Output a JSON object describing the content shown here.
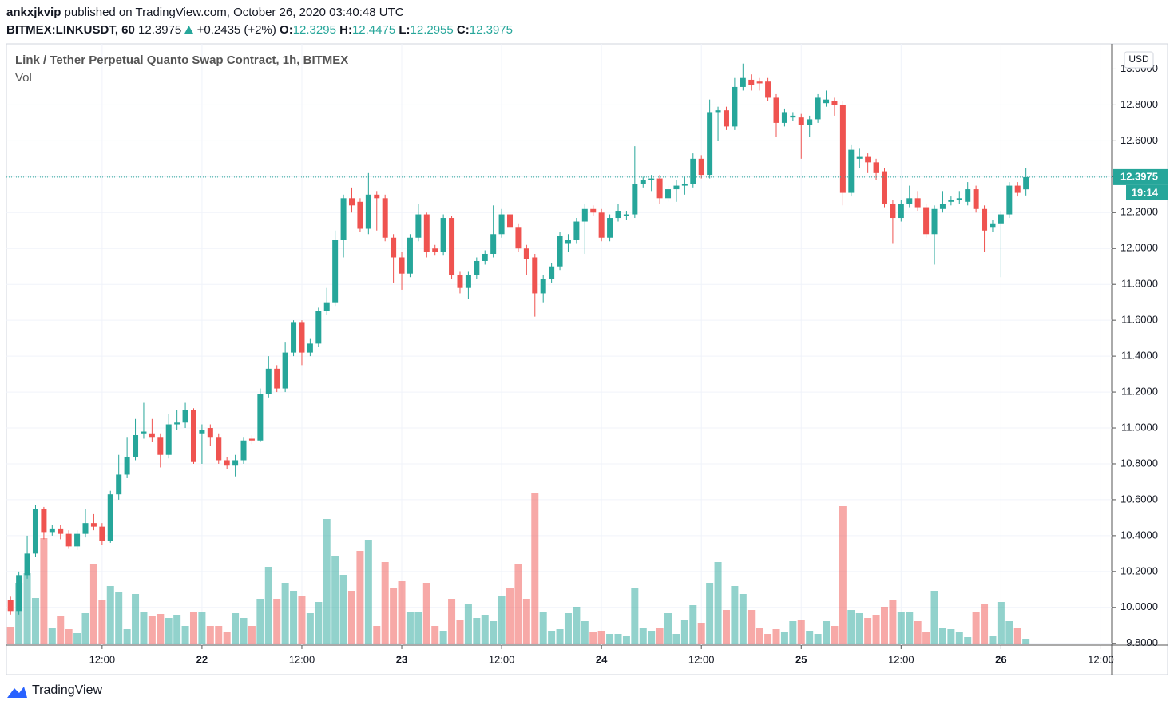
{
  "header": {
    "author": "ankxjkvip",
    "published": "published on TradingView.com, October 26, 2020 03:40:48 UTC",
    "symbol": "BITMEX:LINKUSDT, 60",
    "change": "+0.2435 (+2%)",
    "o": "O:",
    "h": "H:",
    "l": "L:",
    "c": "C:"
  },
  "chart_data": {
    "type": "candlestick",
    "title": "Link / Tether Perpetual Quanto Swap Contract, 1h, BITMEX",
    "volume_label": "Vol",
    "currency": "USD",
    "countdown": "19:14",
    "open": [
      10.04,
      9.98,
      10.18,
      10.3,
      10.55,
      10.42,
      10.44,
      10.41,
      10.34,
      10.41,
      10.47,
      10.45,
      10.37,
      10.63,
      10.74,
      10.84,
      10.97,
      10.97,
      10.95,
      10.85,
      11.02,
      11.03,
      11.1,
      10.97,
      11.0,
      10.95,
      10.82,
      10.79,
      10.82,
      10.94,
      10.93,
      11.19,
      11.33,
      11.22,
      11.42,
      11.59,
      11.42,
      11.47,
      11.65,
      11.7,
      12.05,
      12.28,
      12.26,
      12.11,
      12.3,
      12.28,
      12.06,
      11.95,
      11.86,
      12.06,
      12.19,
      12.0,
      11.98,
      12.17,
      11.85,
      11.78,
      11.85,
      11.93,
      11.97,
      12.08,
      12.19,
      12.12,
      12.0,
      11.95,
      11.75,
      11.83,
      11.9,
      12.03,
      12.05,
      12.15,
      12.22,
      12.2,
      12.06,
      12.17,
      12.18,
      12.19,
      12.36,
      12.38,
      12.39,
      12.28,
      12.33,
      12.35,
      12.36,
      12.5,
      12.41,
      12.76,
      12.77,
      12.68,
      12.9,
      12.94,
      12.93,
      12.93,
      12.84,
      12.7,
      12.73,
      12.73,
      12.69,
      12.72,
      12.81,
      12.82,
      12.8,
      12.31,
      12.5,
      12.51,
      12.48,
      12.43,
      12.25,
      12.17,
      12.25,
      12.28,
      12.23,
      12.08,
      12.22,
      12.26,
      12.27,
      12.26,
      12.33,
      12.22,
      12.12,
      12.14,
      12.19,
      12.35,
      12.3295
    ],
    "high": [
      10.06,
      10.2,
      10.4,
      10.57,
      10.56,
      10.46,
      10.46,
      10.43,
      10.43,
      10.55,
      10.52,
      10.47,
      10.65,
      10.85,
      10.95,
      11.05,
      11.14,
      11.05,
      10.97,
      11.08,
      11.1,
      11.14,
      11.11,
      11.02,
      11.02,
      10.97,
      10.84,
      10.85,
      10.95,
      10.96,
      11.22,
      11.4,
      11.35,
      11.48,
      11.6,
      11.6,
      11.5,
      11.67,
      11.78,
      12.1,
      12.3,
      12.34,
      12.28,
      12.42,
      12.32,
      12.3,
      12.08,
      11.98,
      12.08,
      12.25,
      12.2,
      12.02,
      12.19,
      12.18,
      11.87,
      11.87,
      11.95,
      11.99,
      12.24,
      12.22,
      12.27,
      12.14,
      12.02,
      11.97,
      11.85,
      11.92,
      12.09,
      12.08,
      12.17,
      12.25,
      12.24,
      12.22,
      12.19,
      12.25,
      12.21,
      12.57,
      12.4,
      12.41,
      12.41,
      12.35,
      12.38,
      12.4,
      12.53,
      12.52,
      12.83,
      12.79,
      12.79,
      12.95,
      13.03,
      12.97,
      12.95,
      12.95,
      12.86,
      12.78,
      12.76,
      12.75,
      12.74,
      12.86,
      12.88,
      12.84,
      12.82,
      12.58,
      12.56,
      12.53,
      12.5,
      12.45,
      12.27,
      12.27,
      12.35,
      12.32,
      12.25,
      12.24,
      12.32,
      12.29,
      12.32,
      12.37,
      12.35,
      12.24,
      12.16,
      12.21,
      12.37,
      12.37,
      12.4475
    ],
    "low": [
      9.96,
      9.96,
      10.16,
      10.28,
      10.38,
      10.4,
      10.38,
      10.33,
      10.32,
      10.39,
      10.43,
      10.35,
      10.36,
      10.6,
      10.72,
      10.82,
      10.94,
      10.92,
      10.78,
      10.83,
      10.99,
      11.0,
      10.8,
      10.8,
      10.9,
      10.8,
      10.77,
      10.73,
      10.8,
      10.91,
      10.92,
      11.17,
      11.2,
      11.2,
      11.4,
      11.35,
      11.4,
      11.45,
      11.63,
      11.68,
      11.95,
      12.2,
      12.09,
      12.08,
      12.1,
      12.04,
      11.81,
      11.77,
      11.84,
      12.04,
      11.95,
      11.96,
      11.96,
      11.83,
      11.75,
      11.72,
      11.83,
      11.91,
      11.95,
      12.06,
      12.1,
      11.98,
      11.85,
      11.62,
      11.7,
      11.81,
      11.88,
      11.98,
      12.03,
      11.97,
      12.18,
      12.04,
      12.04,
      12.15,
      12.16,
      12.17,
      12.34,
      12.32,
      12.25,
      12.26,
      12.26,
      12.3,
      12.34,
      12.39,
      12.39,
      12.6,
      12.66,
      12.66,
      12.88,
      12.88,
      12.88,
      12.82,
      12.62,
      12.68,
      12.71,
      12.5,
      12.62,
      12.7,
      12.79,
      12.74,
      12.24,
      12.29,
      12.45,
      12.42,
      12.38,
      12.23,
      12.03,
      12.15,
      12.23,
      12.21,
      12.06,
      11.91,
      12.2,
      12.24,
      12.25,
      12.24,
      12.2,
      11.98,
      12.09,
      11.84,
      12.17,
      12.29,
      12.2955
    ],
    "close": [
      9.98,
      10.18,
      10.3,
      10.55,
      10.42,
      10.44,
      10.41,
      10.34,
      10.41,
      10.47,
      10.45,
      10.37,
      10.63,
      10.74,
      10.84,
      10.96,
      10.98,
      10.95,
      10.85,
      11.02,
      11.03,
      11.1,
      10.81,
      10.99,
      10.95,
      10.82,
      10.79,
      10.82,
      10.93,
      10.93,
      11.19,
      11.33,
      11.22,
      11.42,
      11.59,
      11.42,
      11.47,
      11.65,
      11.7,
      12.05,
      12.28,
      12.24,
      12.11,
      12.3,
      12.28,
      12.06,
      11.95,
      11.86,
      12.06,
      12.19,
      11.98,
      11.98,
      12.17,
      11.85,
      11.78,
      11.85,
      11.93,
      11.97,
      12.08,
      12.19,
      12.12,
      12.0,
      11.94,
      11.75,
      11.83,
      11.9,
      12.07,
      12.05,
      12.15,
      12.22,
      12.2,
      12.06,
      12.17,
      12.21,
      12.19,
      12.36,
      12.38,
      12.39,
      12.28,
      12.33,
      12.35,
      12.36,
      12.5,
      12.41,
      12.76,
      12.77,
      12.68,
      12.9,
      12.95,
      12.91,
      12.92,
      12.84,
      12.7,
      12.76,
      12.74,
      12.69,
      12.72,
      12.84,
      12.83,
      12.8,
      12.31,
      12.55,
      12.51,
      12.48,
      12.42,
      12.25,
      12.17,
      12.25,
      12.28,
      12.23,
      12.08,
      12.22,
      12.25,
      12.27,
      12.28,
      12.33,
      12.22,
      12.1,
      12.14,
      12.19,
      12.35,
      12.31,
      12.3975
    ],
    "volume": [
      21,
      76,
      88,
      57,
      132,
      20,
      34,
      18,
      13,
      38,
      100,
      54,
      72,
      64,
      18,
      62,
      40,
      34,
      37,
      32,
      36,
      22,
      40,
      40,
      22,
      22,
      14,
      38,
      32,
      22,
      56,
      96,
      56,
      76,
      66,
      60,
      38,
      52,
      156,
      110,
      86,
      66,
      116,
      130,
      22,
      102,
      70,
      78,
      40,
      40,
      76,
      22,
      16,
      56,
      30,
      50,
      32,
      36,
      28,
      60,
      70,
      100,
      56,
      188,
      40,
      16,
      18,
      38,
      46,
      28,
      14,
      16,
      12,
      12,
      10,
      70,
      20,
      16,
      20,
      38,
      12,
      30,
      48,
      26,
      76,
      102,
      42,
      72,
      62,
      42,
      20,
      12,
      18,
      14,
      28,
      30,
      16,
      12,
      28,
      22,
      172,
      42,
      38,
      32,
      36,
      46,
      54,
      40,
      40,
      28,
      14,
      66,
      20,
      18,
      14,
      8,
      40,
      50,
      10,
      52,
      28,
      20,
      6
    ],
    "up_color": "#26a69a",
    "down_color": "#ef5350",
    "ylim": [
      9.79,
      13.14
    ],
    "yticks": [
      {
        "value": 9.8,
        "label": "9.8000"
      },
      {
        "value": 10.0,
        "label": "10.0000"
      },
      {
        "value": 10.2,
        "label": "10.2000"
      },
      {
        "value": 10.4,
        "label": "10.4000"
      },
      {
        "value": 10.6,
        "label": "10.6000"
      },
      {
        "value": 10.8,
        "label": "10.8000"
      },
      {
        "value": 11.0,
        "label": "11.0000"
      },
      {
        "value": 11.2,
        "label": "11.2000"
      },
      {
        "value": 11.4,
        "label": "11.4000"
      },
      {
        "value": 11.6,
        "label": "11.6000"
      },
      {
        "value": 11.8,
        "label": "11.8000"
      },
      {
        "value": 12.0,
        "label": "12.0000"
      },
      {
        "value": 12.2,
        "label": "12.2000"
      },
      {
        "value": 12.4,
        "label": "12.4000"
      },
      {
        "value": 12.6,
        "label": "12.6000"
      },
      {
        "value": 12.8,
        "label": "12.8000"
      },
      {
        "value": 13.0,
        "label": "13.0000"
      }
    ],
    "xlim": [
      -0.5,
      132.3
    ],
    "xticks": [
      {
        "value": 11,
        "label": "12:00"
      },
      {
        "value": 23,
        "label": "22"
      },
      {
        "value": 35,
        "label": "12:00"
      },
      {
        "value": 47,
        "label": "23"
      },
      {
        "value": 59,
        "label": "12:00"
      },
      {
        "value": 71,
        "label": "24"
      },
      {
        "value": 83,
        "label": "12:00"
      },
      {
        "value": 95,
        "label": "25"
      },
      {
        "value": 107,
        "label": "12:00"
      },
      {
        "value": 119,
        "label": "26"
      },
      {
        "value": 131,
        "label": "12:00"
      }
    ],
    "grid": true
  },
  "footer": {
    "brand": "TradingView"
  }
}
